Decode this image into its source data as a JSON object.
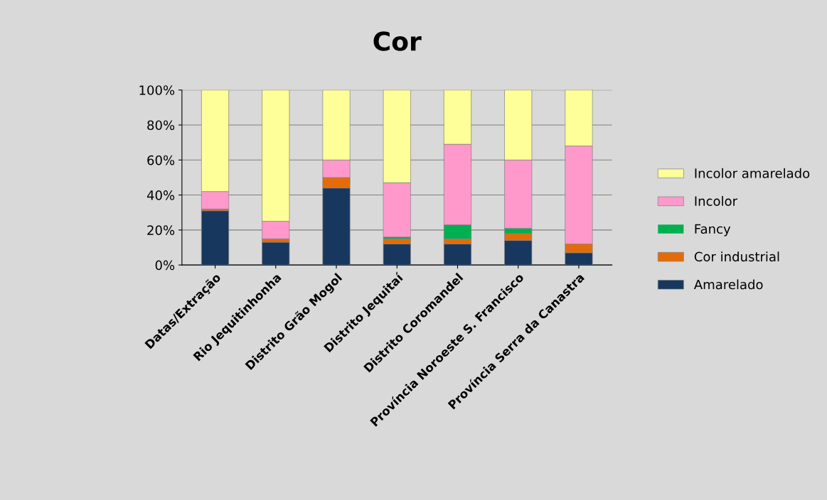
{
  "chart_data": {
    "type": "bar",
    "title": "Cor",
    "stacked": true,
    "categories": [
      "Datas/Extração",
      "Rio Jequitinhonha",
      "Distrito Grão Mogol",
      "Distrito Jequitaí",
      "Distrito Coromandel",
      "Província Noroeste S. Francisco",
      "Província Serra da Canastra"
    ],
    "series": [
      {
        "name": "Amarelado",
        "color": "#17375e",
        "values": [
          31,
          13,
          44,
          12,
          12,
          14,
          7
        ]
      },
      {
        "name": "Cor industrial",
        "color": "#e36c09",
        "values": [
          1,
          2,
          6,
          3,
          3,
          4,
          5
        ]
      },
      {
        "name": "Fancy",
        "color": "#00b050",
        "values": [
          0,
          0,
          0,
          1,
          8,
          3,
          0
        ]
      },
      {
        "name": "Incolor",
        "color": "#ff99cc",
        "values": [
          10,
          10,
          10,
          31,
          46,
          39,
          56
        ]
      },
      {
        "name": "Incolor amarelado",
        "color": "#ffff99",
        "values": [
          58,
          75,
          40,
          53,
          31,
          40,
          32
        ]
      }
    ],
    "ylim": [
      0,
      100
    ],
    "yticks": [
      {
        "value": 0,
        "label": "0%"
      },
      {
        "value": 20,
        "label": "20%"
      },
      {
        "value": 40,
        "label": "40%"
      },
      {
        "value": 60,
        "label": "60%"
      },
      {
        "value": 80,
        "label": "80%"
      },
      {
        "value": 100,
        "label": "100%"
      }
    ],
    "grid": "y",
    "legend": "right"
  }
}
